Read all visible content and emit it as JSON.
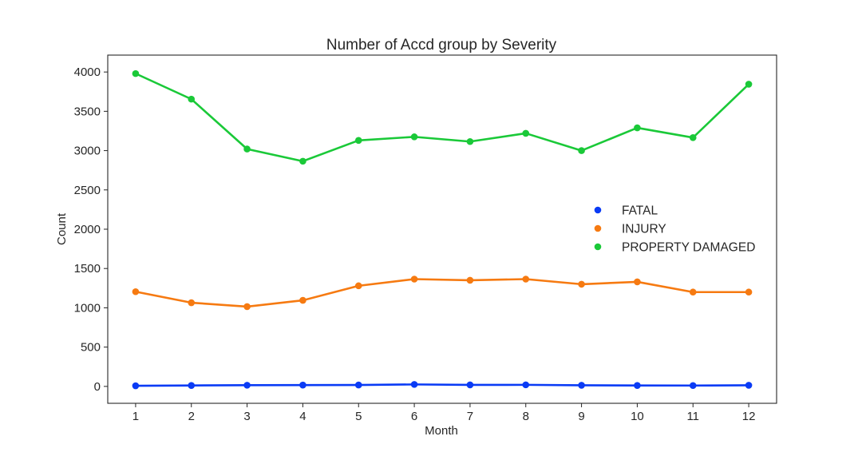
{
  "chart_data": {
    "type": "line",
    "title": "Number of Accd group by Severity",
    "xlabel": "Month",
    "ylabel": "Count",
    "x": [
      1,
      2,
      3,
      4,
      5,
      6,
      7,
      8,
      9,
      10,
      11,
      12
    ],
    "x_tick_labels": [
      "1",
      "2",
      "3",
      "4",
      "5",
      "6",
      "7",
      "8",
      "9",
      "10",
      "11",
      "12"
    ],
    "y_ticks": [
      0,
      500,
      1000,
      1500,
      2000,
      2500,
      3000,
      3500,
      4000
    ],
    "y_tick_labels": [
      "0",
      "500",
      "1000",
      "1500",
      "2000",
      "2500",
      "3000",
      "3500",
      "4000"
    ],
    "ylim": [
      -215,
      4215
    ],
    "grid": false,
    "legend_position": "center-right",
    "series": [
      {
        "name": "FATAL",
        "color": "#0a3bf5",
        "values": [
          8,
          12,
          15,
          17,
          18,
          25,
          19,
          20,
          14,
          12,
          11,
          14
        ]
      },
      {
        "name": "INJURY",
        "color": "#f67a11",
        "values": [
          1205,
          1065,
          1015,
          1095,
          1280,
          1365,
          1350,
          1365,
          1300,
          1330,
          1200,
          1200
        ]
      },
      {
        "name": "PROPERTY DAMAGED",
        "color": "#1ac938",
        "values": [
          3980,
          3655,
          3020,
          2865,
          3130,
          3175,
          3115,
          3220,
          3000,
          3290,
          3165,
          3845
        ]
      }
    ]
  }
}
